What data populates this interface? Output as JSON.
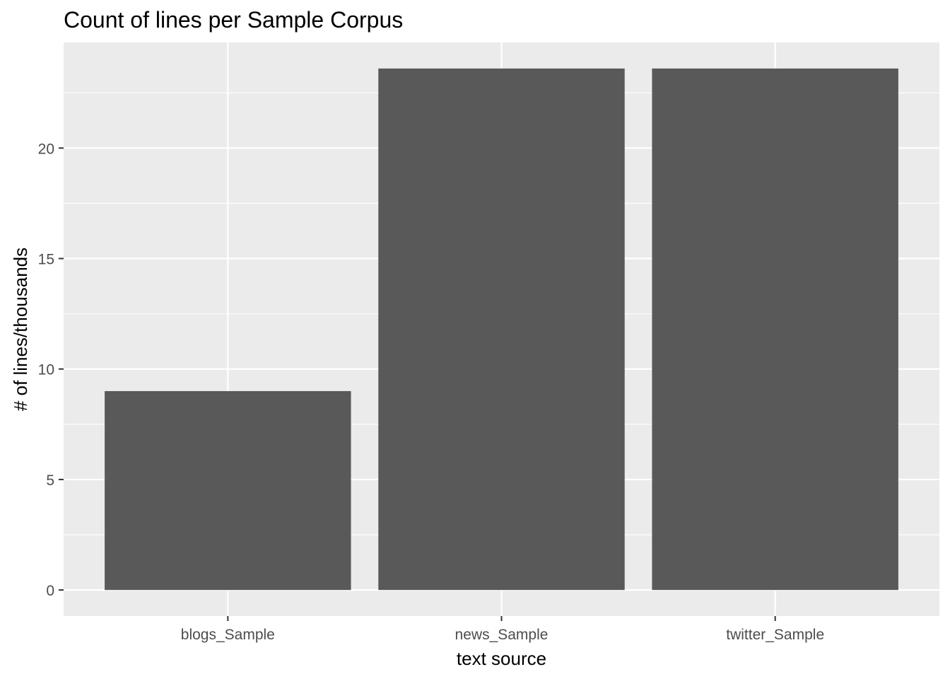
{
  "chart_data": {
    "type": "bar",
    "title": "Count of lines per Sample Corpus",
    "xlabel": "text source",
    "ylabel": "# of lines/thousands",
    "categories": [
      "blogs_Sample",
      "news_Sample",
      "twitter_Sample"
    ],
    "values": [
      9.0,
      23.6,
      23.6
    ],
    "ylim": [
      -1.18,
      24.78
    ],
    "yticks": [
      0,
      5,
      10,
      15,
      20
    ],
    "grid": true,
    "legend": "none",
    "colors": {
      "panel": "#ebebeb",
      "bar": "#595959",
      "grid_major": "#ffffff",
      "grid_minor": "#f5f5f5",
      "tick_text": "#4d4d4d",
      "tick_mark": "#333333"
    }
  }
}
